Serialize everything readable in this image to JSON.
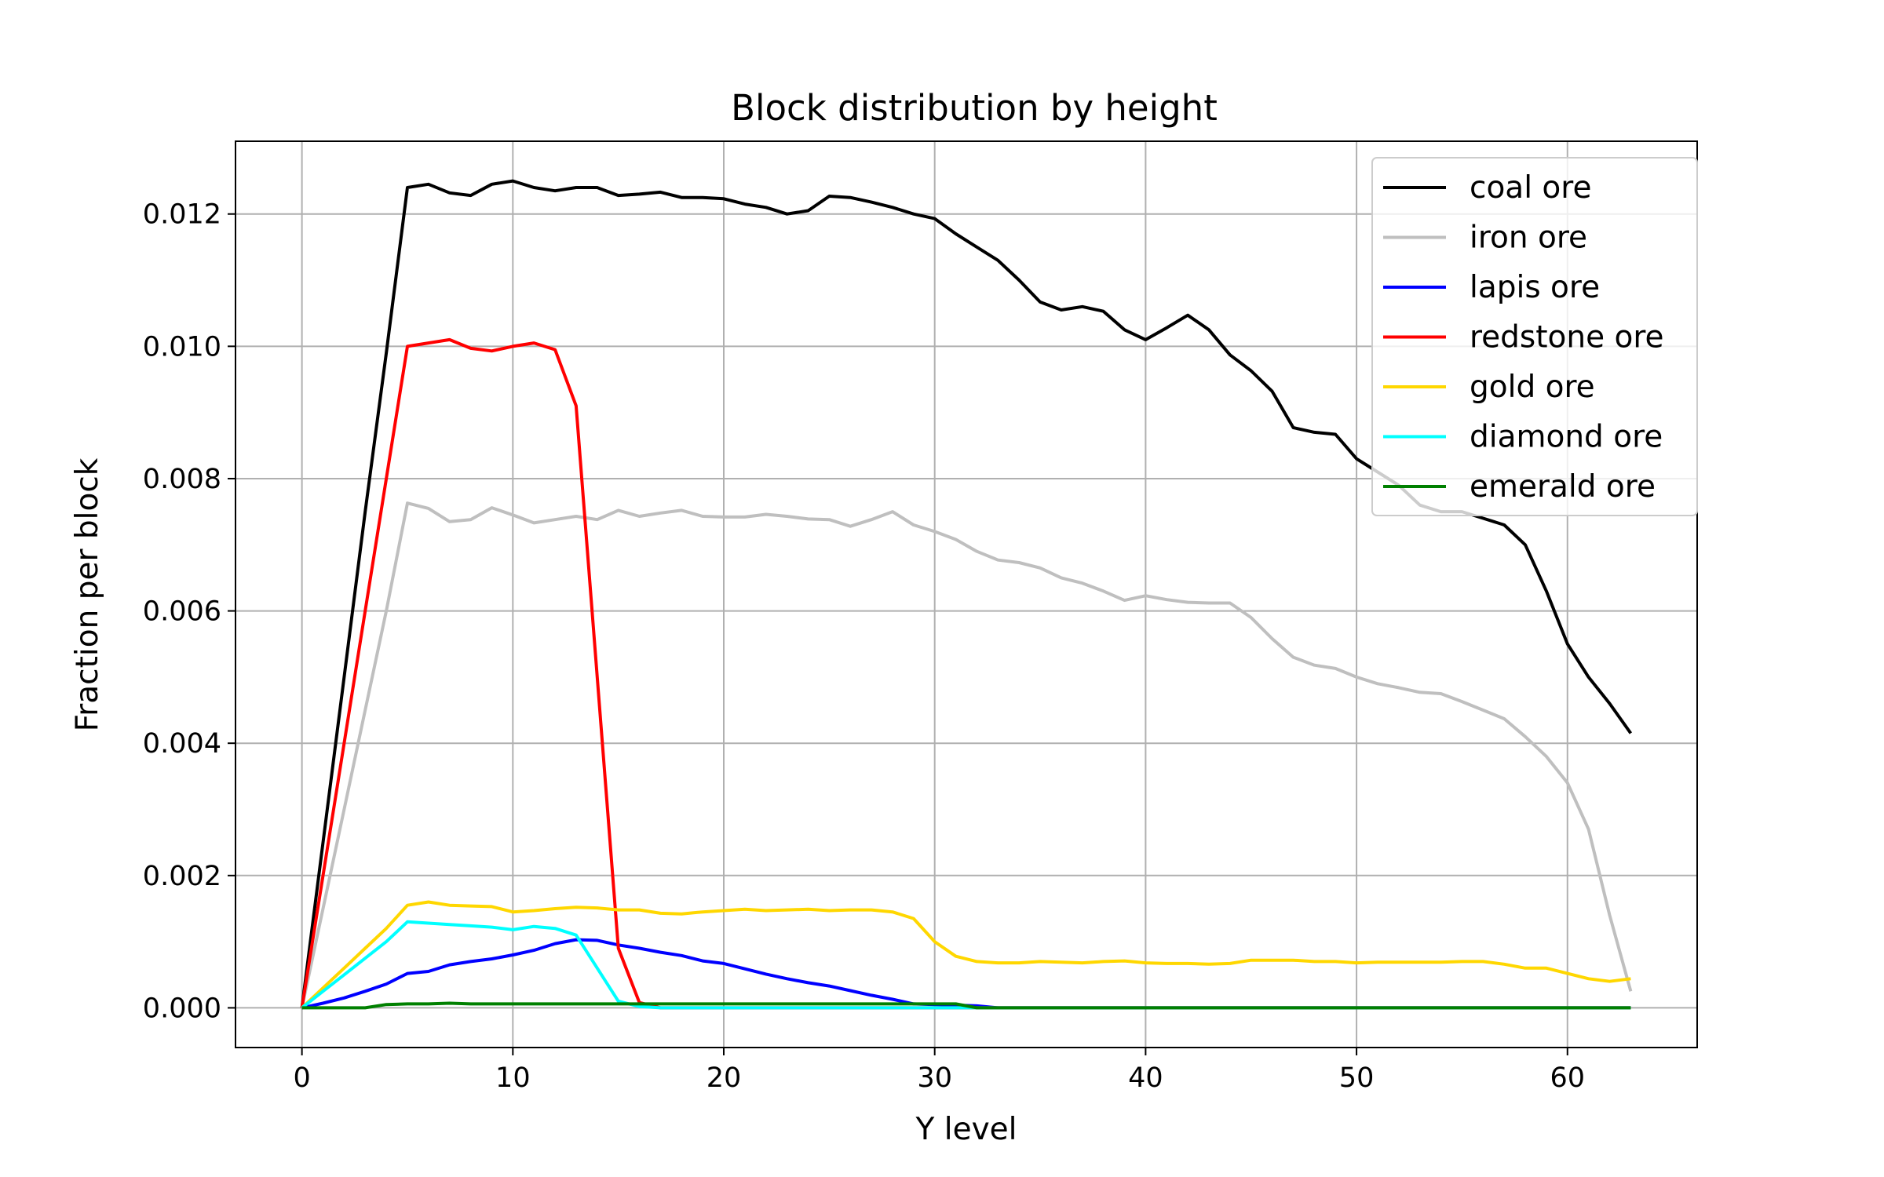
{
  "chart_data": {
    "type": "line",
    "title": "Block distribution by height",
    "xlabel": "Y level",
    "ylabel": "Fraction per block",
    "xlim": [
      -3.15,
      66.15
    ],
    "ylim": [
      -0.0006,
      0.0131
    ],
    "xticks": [
      0,
      10,
      20,
      30,
      40,
      50,
      60
    ],
    "xtick_labels": [
      "0",
      "10",
      "20",
      "30",
      "40",
      "50",
      "60"
    ],
    "yticks": [
      0.0,
      0.002,
      0.004,
      0.006,
      0.008,
      0.01,
      0.012
    ],
    "ytick_labels": [
      "0.000",
      "0.002",
      "0.004",
      "0.006",
      "0.008",
      "0.010",
      "0.012"
    ],
    "grid": true,
    "legend_position": "top-right",
    "x": [
      0,
      1,
      2,
      3,
      4,
      5,
      6,
      7,
      8,
      9,
      10,
      11,
      12,
      13,
      14,
      15,
      16,
      17,
      18,
      19,
      20,
      21,
      22,
      23,
      24,
      25,
      26,
      27,
      28,
      29,
      30,
      31,
      32,
      33,
      34,
      35,
      36,
      37,
      38,
      39,
      40,
      41,
      42,
      43,
      44,
      45,
      46,
      47,
      48,
      49,
      50,
      51,
      52,
      53,
      54,
      55,
      56,
      57,
      58,
      59,
      60,
      61,
      62,
      63
    ],
    "series": [
      {
        "name": "coal ore",
        "color": "#000000",
        "values": [
          0,
          0.0025,
          0.005,
          0.0075,
          0.0099,
          0.0124,
          0.01245,
          0.01232,
          0.01228,
          0.01245,
          0.0125,
          0.0124,
          0.01235,
          0.0124,
          0.0124,
          0.01228,
          0.0123,
          0.01233,
          0.01225,
          0.01225,
          0.01223,
          0.01215,
          0.0121,
          0.012,
          0.01205,
          0.01227,
          0.01225,
          0.01218,
          0.0121,
          0.012,
          0.01193,
          0.0117,
          0.0115,
          0.0113,
          0.011,
          0.01067,
          0.01055,
          0.0106,
          0.01053,
          0.01025,
          0.0101,
          0.01028,
          0.01047,
          0.01025,
          0.00987,
          0.00963,
          0.00932,
          0.00877,
          0.0087,
          0.00867,
          0.0083,
          0.0081,
          0.0079,
          0.0076,
          0.0075,
          0.0075,
          0.0074,
          0.0073,
          0.007,
          0.0063,
          0.0055,
          0.005,
          0.0046,
          0.00415
        ]
      },
      {
        "name": "iron ore",
        "color": "#bfbfbf",
        "values": [
          0,
          0.0015,
          0.003,
          0.0045,
          0.006,
          0.00763,
          0.00755,
          0.00735,
          0.00738,
          0.00756,
          0.00745,
          0.00733,
          0.00738,
          0.00743,
          0.00738,
          0.00752,
          0.00743,
          0.00748,
          0.00752,
          0.00743,
          0.00742,
          0.00742,
          0.00746,
          0.00743,
          0.00739,
          0.00738,
          0.00728,
          0.00738,
          0.0075,
          0.0073,
          0.0072,
          0.00708,
          0.0069,
          0.00677,
          0.00673,
          0.00665,
          0.0065,
          0.00642,
          0.0063,
          0.00616,
          0.00623,
          0.00617,
          0.00613,
          0.00612,
          0.00612,
          0.0059,
          0.00558,
          0.0053,
          0.00518,
          0.00513,
          0.005,
          0.0049,
          0.00484,
          0.00477,
          0.00475,
          0.00463,
          0.0045,
          0.00437,
          0.0041,
          0.0038,
          0.0034,
          0.0027,
          0.0014,
          0.00025
        ]
      },
      {
        "name": "lapis ore",
        "color": "#0000ff",
        "values": [
          0,
          7e-05,
          0.00015,
          0.00025,
          0.00036,
          0.00052,
          0.00055,
          0.00065,
          0.0007,
          0.00074,
          0.0008,
          0.00087,
          0.00097,
          0.00103,
          0.00102,
          0.00095,
          0.0009,
          0.00084,
          0.00079,
          0.00071,
          0.00067,
          0.00059,
          0.00051,
          0.00044,
          0.00038,
          0.00033,
          0.00026,
          0.00019,
          0.00013,
          6e-05,
          5e-05,
          4e-05,
          3e-05,
          0,
          0,
          0,
          0,
          0,
          0,
          0,
          0,
          0,
          0,
          0,
          0,
          0,
          0,
          0,
          0,
          0,
          0,
          0,
          0,
          0,
          0,
          0,
          0,
          0,
          0,
          0,
          0,
          0,
          0,
          0
        ]
      },
      {
        "name": "redstone ore",
        "color": "#ff0000",
        "values": [
          0,
          0.002,
          0.004,
          0.006,
          0.008,
          0.01,
          0.01005,
          0.0101,
          0.00997,
          0.00993,
          0.01,
          0.01005,
          0.00995,
          0.0091,
          0.005,
          0.0009,
          8e-05,
          0,
          0,
          0,
          0,
          0,
          0,
          0,
          0,
          0,
          0,
          0,
          0,
          0,
          0,
          0,
          0,
          0,
          0,
          0,
          0,
          0,
          0,
          0,
          0,
          0,
          0,
          0,
          0,
          0,
          0,
          0,
          0,
          0,
          0,
          0,
          0,
          0,
          0,
          0,
          0,
          0,
          0,
          0,
          0,
          0,
          0,
          0
        ]
      },
      {
        "name": "gold ore",
        "color": "#ffd700",
        "values": [
          0,
          0.0003,
          0.0006,
          0.0009,
          0.0012,
          0.00155,
          0.0016,
          0.00155,
          0.00154,
          0.00153,
          0.00145,
          0.00147,
          0.0015,
          0.00152,
          0.00151,
          0.00148,
          0.00148,
          0.00143,
          0.00142,
          0.00145,
          0.00147,
          0.00149,
          0.00147,
          0.00148,
          0.00149,
          0.00147,
          0.00148,
          0.00148,
          0.00145,
          0.00135,
          0.001,
          0.00078,
          0.0007,
          0.00068,
          0.00068,
          0.0007,
          0.00069,
          0.00068,
          0.0007,
          0.00071,
          0.00068,
          0.00067,
          0.00067,
          0.00066,
          0.00067,
          0.00072,
          0.00072,
          0.00072,
          0.0007,
          0.0007,
          0.00068,
          0.00069,
          0.00069,
          0.00069,
          0.00069,
          0.0007,
          0.0007,
          0.00066,
          0.0006,
          0.0006,
          0.00052,
          0.00044,
          0.0004,
          0.00044
        ]
      },
      {
        "name": "diamond ore",
        "color": "#00ffff",
        "values": [
          0,
          0.00025,
          0.0005,
          0.00075,
          0.001,
          0.0013,
          0.00128,
          0.00126,
          0.00124,
          0.00122,
          0.00118,
          0.00123,
          0.0012,
          0.0011,
          0.0006,
          0.0001,
          2e-05,
          0,
          0,
          0,
          0,
          0,
          0,
          0,
          0,
          0,
          0,
          0,
          0,
          0,
          0,
          0,
          0,
          0,
          0,
          0,
          0,
          0,
          0,
          0,
          0,
          0,
          0,
          0,
          0,
          0,
          0,
          0,
          0,
          0,
          0,
          0,
          0,
          0,
          0,
          0,
          0,
          0,
          0,
          0,
          0,
          0,
          0,
          0
        ]
      },
      {
        "name": "emerald ore",
        "color": "#008000",
        "values": [
          0,
          0,
          0,
          0,
          5e-05,
          6e-05,
          6e-05,
          7e-05,
          6e-05,
          6e-05,
          6e-05,
          6e-05,
          6e-05,
          6e-05,
          6e-05,
          6e-05,
          6e-05,
          6e-05,
          6e-05,
          6e-05,
          6e-05,
          6e-05,
          6e-05,
          6e-05,
          6e-05,
          6e-05,
          6e-05,
          6e-05,
          6e-05,
          6e-05,
          6e-05,
          6e-05,
          0,
          0,
          0,
          0,
          0,
          0,
          0,
          0,
          0,
          0,
          0,
          0,
          0,
          0,
          0,
          0,
          0,
          0,
          0,
          0,
          0,
          0,
          0,
          0,
          0,
          0,
          0,
          0,
          0,
          0,
          0,
          0
        ]
      }
    ]
  }
}
